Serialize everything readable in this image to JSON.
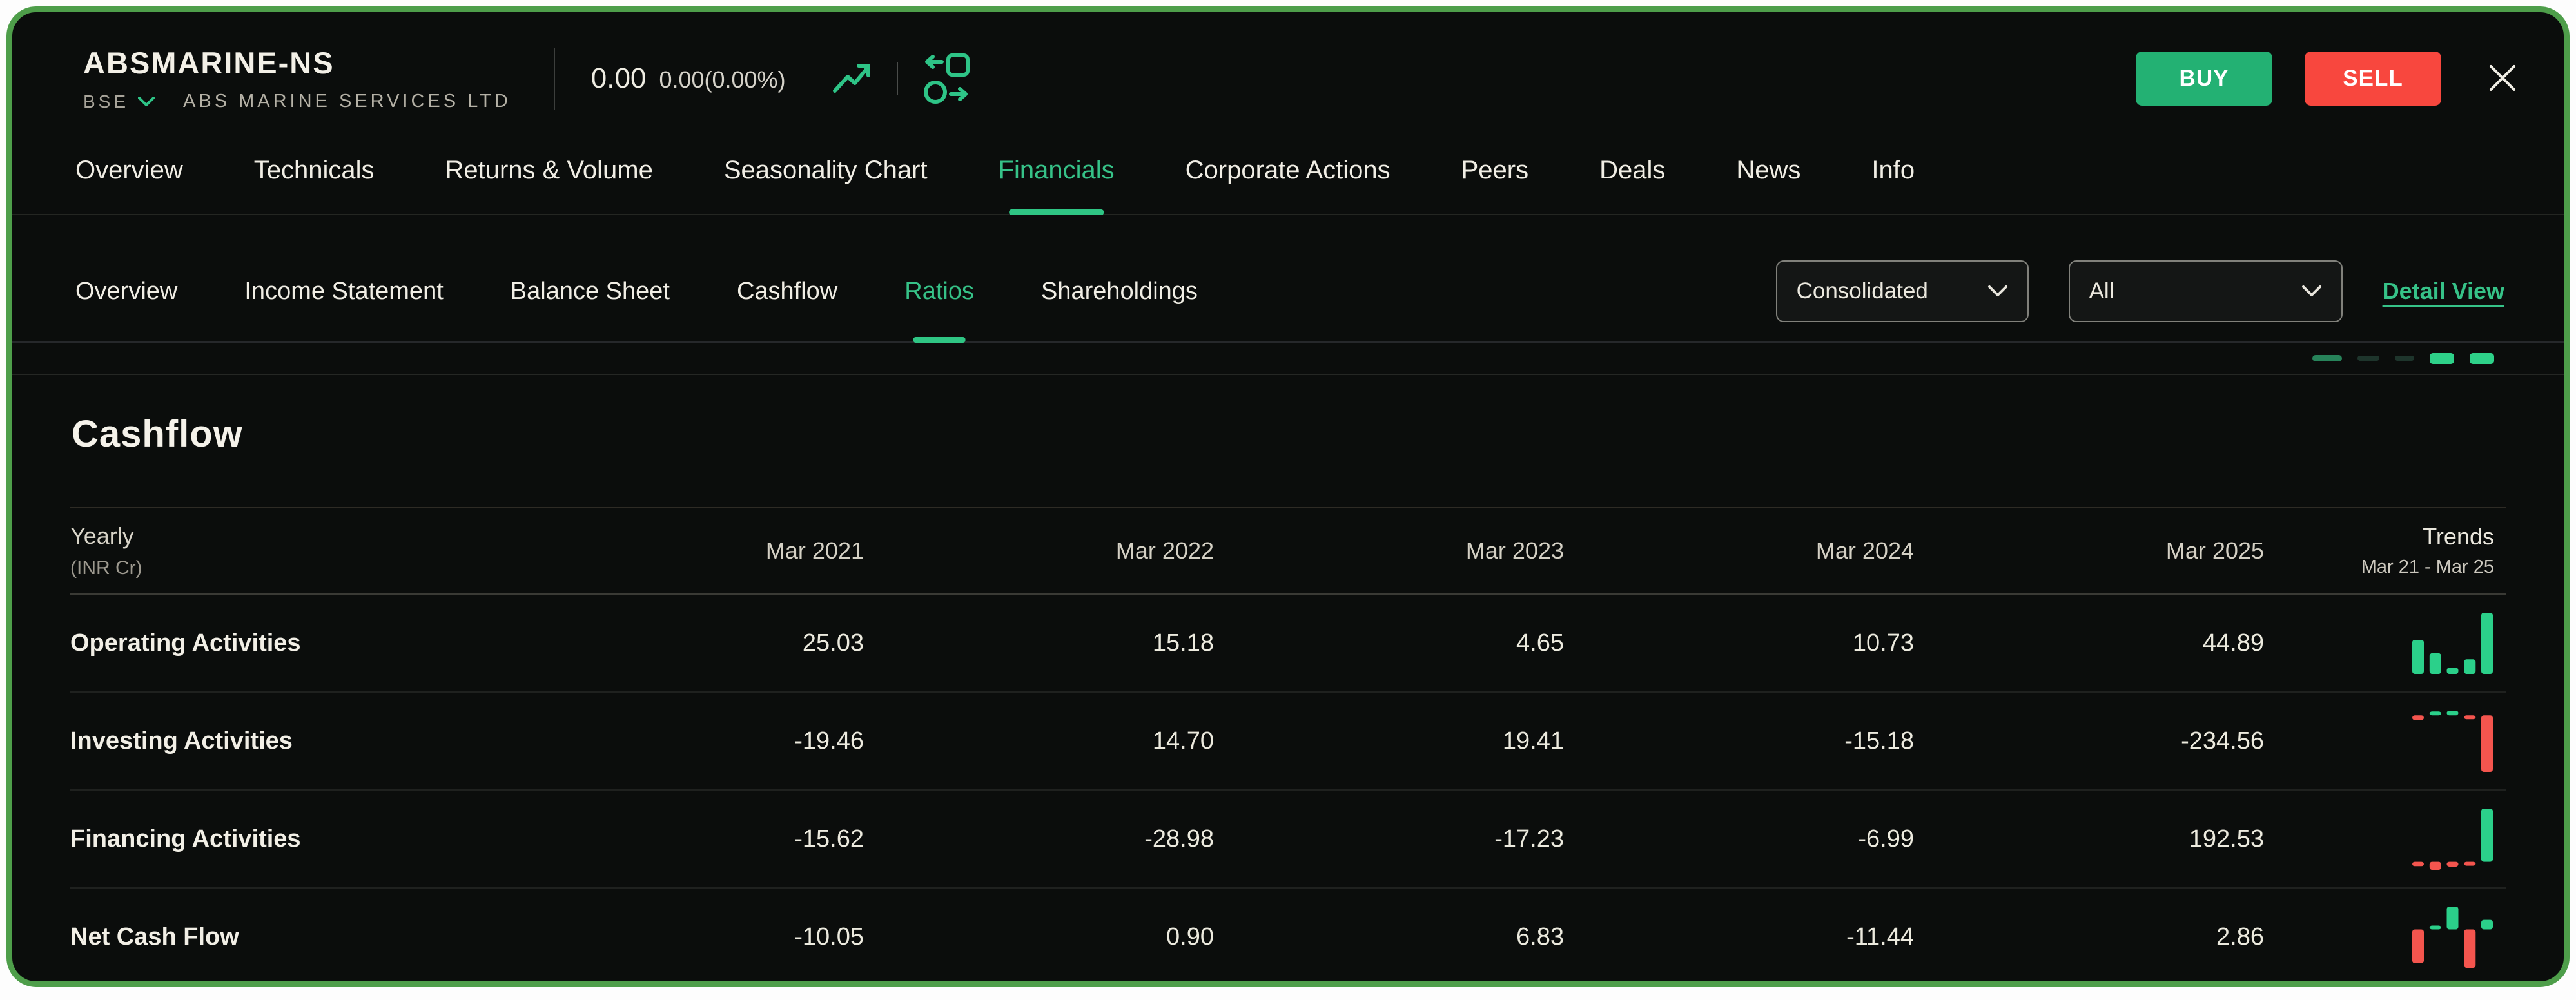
{
  "colors": {
    "accent_green": "#2ec487",
    "accent_red": "#f8473e",
    "frame_green": "#4e9e4a",
    "spark_positive": "#2bd08a",
    "spark_negative": "#f4554e"
  },
  "header": {
    "symbol": "ABSMARINE-NS",
    "exchange": "BSE",
    "company": "ABS MARINE SERVICES LTD",
    "price": "0.00",
    "change": "0.00(0.00%)",
    "buy_label": "BUY",
    "sell_label": "SELL"
  },
  "tabs": {
    "items": [
      "Overview",
      "Technicals",
      "Returns & Volume",
      "Seasonality Chart",
      "Financials",
      "Corporate Actions",
      "Peers",
      "Deals",
      "News",
      "Info"
    ],
    "active": "Financials"
  },
  "subtabs": {
    "items": [
      "Overview",
      "Income Statement",
      "Balance Sheet",
      "Cashflow",
      "Ratios",
      "Shareholdings"
    ],
    "active": "Ratios",
    "controls": {
      "consolidation": "Consolidated",
      "period": "All",
      "detail_view": "Detail View"
    }
  },
  "section": {
    "title": "Cashflow"
  },
  "cut_row_trend": {
    "bars": [
      {
        "w": 46,
        "h": 10,
        "c": "#27835a"
      },
      {
        "w": 34,
        "h": 8,
        "c": "#1e352c"
      },
      {
        "w": 30,
        "h": 8,
        "c": "#1e352c"
      },
      {
        "w": 38,
        "h": 17,
        "c": "#2ed189"
      },
      {
        "w": 38,
        "h": 17,
        "c": "#2ed189"
      }
    ]
  },
  "chart_data": {
    "type": "table",
    "title": "Cashflow",
    "period_label": "Yearly",
    "unit_label": "(INR Cr)",
    "columns": [
      "Mar 2021",
      "Mar 2022",
      "Mar 2023",
      "Mar 2024",
      "Mar 2025"
    ],
    "trends_label": "Trends",
    "trends_range": "Mar 21 - Mar 25",
    "rows": [
      {
        "label": "Operating Activities",
        "values": [
          25.03,
          15.18,
          4.65,
          10.73,
          44.89
        ]
      },
      {
        "label": "Investing Activities",
        "values": [
          -19.46,
          14.7,
          19.41,
          -15.18,
          -234.56
        ]
      },
      {
        "label": "Financing Activities",
        "values": [
          -15.62,
          -28.98,
          -17.23,
          -6.99,
          192.53
        ]
      },
      {
        "label": "Net Cash Flow",
        "values": [
          -10.05,
          0.9,
          6.83,
          -11.44,
          2.86
        ]
      }
    ],
    "trend_type": "bar-sparkline"
  }
}
